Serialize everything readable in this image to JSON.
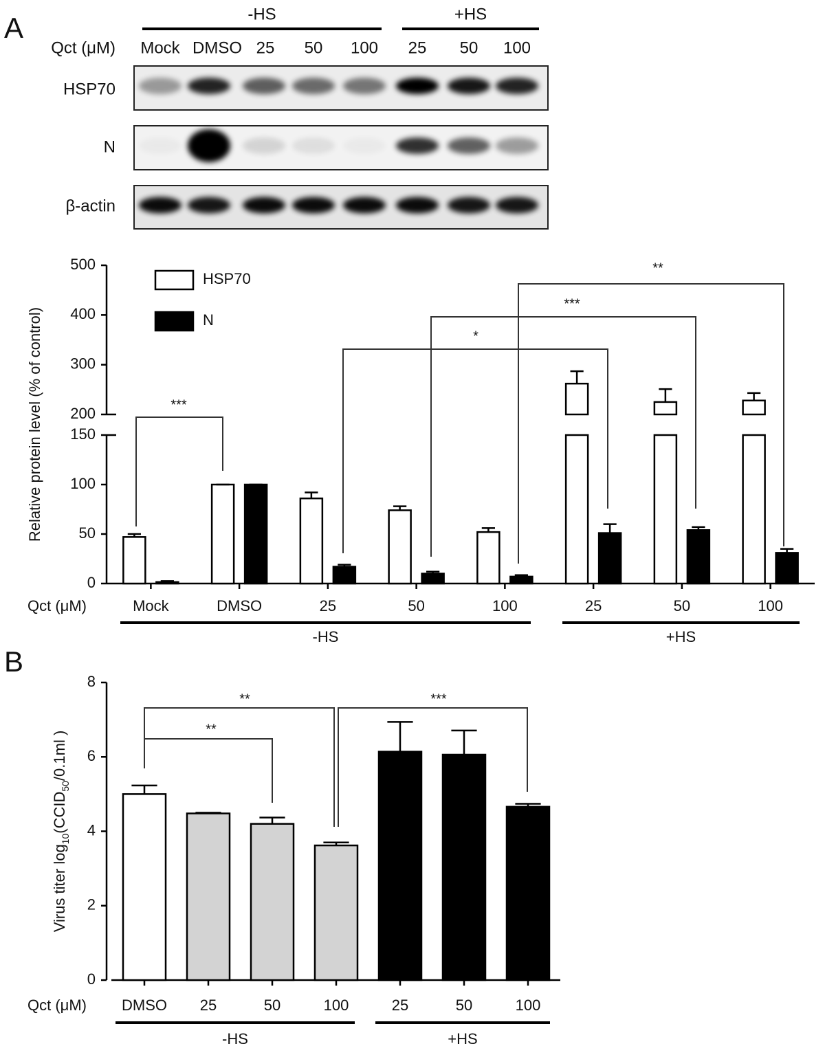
{
  "panels": [
    "A",
    "B"
  ],
  "blot": {
    "groups": [
      "-HS",
      "+HS"
    ],
    "x_label": "Qct (μM)",
    "lanes": [
      "Mock",
      "DMSO",
      "25",
      "50",
      "100",
      "25",
      "50",
      "100"
    ],
    "rows": [
      "HSP70",
      "N",
      "β-actin"
    ]
  },
  "chart_data": [
    {
      "type": "bar",
      "x_label": "Qct (μM)",
      "ylabel": "Relative protein level (% of control)",
      "categories": [
        "Mock",
        "DMSO",
        "25",
        "50",
        "100",
        "25",
        "50",
        "100"
      ],
      "groups": [
        "-HS",
        "+HS"
      ],
      "series": [
        {
          "name": "HSP70",
          "color": "#ffffff",
          "values": [
            47,
            100,
            86,
            74,
            52,
            262,
            225,
            228
          ],
          "errors": [
            3,
            0,
            6,
            4,
            4,
            25,
            26,
            15
          ]
        },
        {
          "name": "N",
          "color": "#000000",
          "values": [
            1.5,
            100,
            17,
            10,
            7,
            51,
            54,
            31
          ],
          "errors": [
            1,
            0,
            2,
            2,
            1.5,
            9,
            3,
            4
          ]
        }
      ],
      "ylim": [
        0,
        500
      ],
      "ybreak": [
        150,
        200
      ],
      "yticks": [
        0,
        50,
        100,
        150,
        200,
        300,
        400,
        500
      ],
      "annotations": [
        "***",
        "*",
        "***",
        "**"
      ]
    },
    {
      "type": "bar",
      "x_label": "Qct (μM)",
      "ylabel_parts": [
        "Virus titer log",
        "10",
        "(CCID",
        "50",
        "/0.1ml )"
      ],
      "categories": [
        "DMSO",
        "25",
        "50",
        "100",
        "25",
        "50",
        "100"
      ],
      "groups": [
        "-HS",
        "+HS"
      ],
      "values": [
        5.0,
        4.48,
        4.2,
        3.62,
        6.14,
        6.06,
        4.66
      ],
      "errors": [
        0.23,
        0.02,
        0.17,
        0.08,
        0.8,
        0.65,
        0.08
      ],
      "colors": [
        "#ffffff",
        "#d3d3d3",
        "#d3d3d3",
        "#d3d3d3",
        "#000000",
        "#000000",
        "#000000"
      ],
      "ylim": [
        0,
        8
      ],
      "yticks": [
        0,
        2,
        4,
        6,
        8
      ],
      "annotations": [
        "**",
        "**",
        "***"
      ]
    }
  ]
}
